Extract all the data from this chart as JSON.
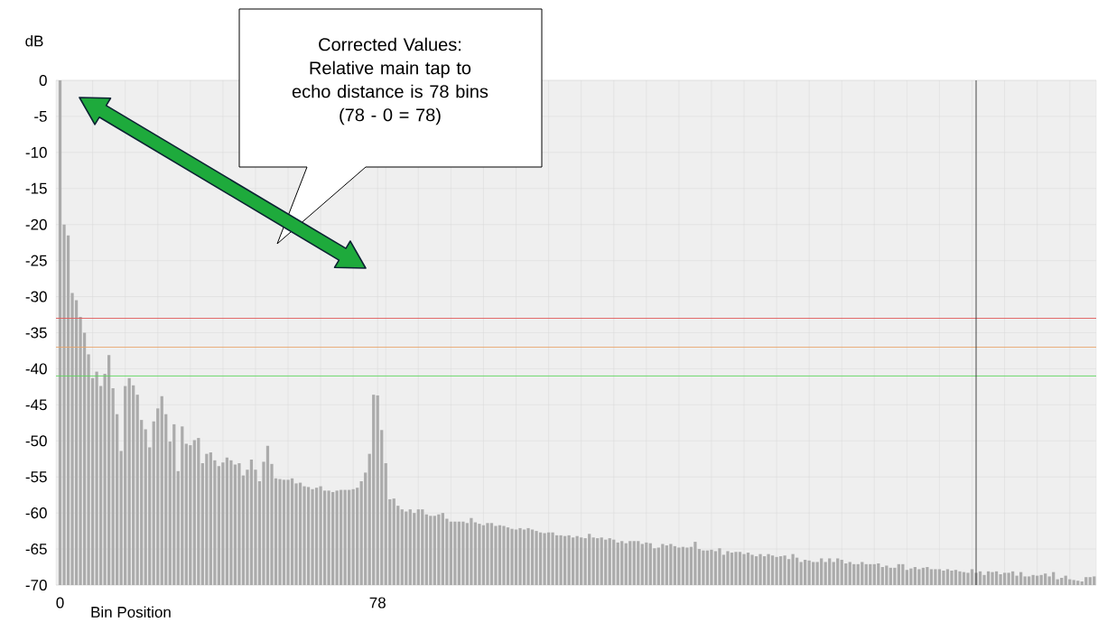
{
  "chart_data": {
    "type": "bar",
    "xlabel": "Bin Position",
    "ylabel": "dB",
    "color": "#ababab",
    "x": [
      0,
      1,
      2,
      3,
      4,
      5,
      6,
      7,
      8,
      9,
      10,
      11,
      12,
      13,
      14,
      15,
      16,
      17,
      18,
      19,
      20,
      21,
      22,
      23,
      24,
      25,
      26,
      27,
      28,
      29,
      30,
      31,
      32,
      33,
      34,
      35,
      36,
      37,
      38,
      39,
      40,
      41,
      42,
      43,
      44,
      45,
      46,
      47,
      48,
      49,
      50,
      51,
      52,
      53,
      54,
      55,
      56,
      57,
      58,
      59,
      60,
      61,
      62,
      63,
      64,
      65,
      66,
      67,
      68,
      69,
      70,
      71,
      72,
      73,
      74,
      75,
      76,
      77,
      78,
      79,
      80,
      81,
      82,
      83,
      84,
      85,
      86,
      87,
      88,
      89,
      90,
      91,
      92,
      93,
      94,
      95,
      96,
      97,
      98,
      99,
      100,
      101,
      102,
      103,
      104,
      105,
      106,
      107,
      108,
      109,
      110,
      111,
      112,
      113,
      114,
      115,
      116,
      117,
      118,
      119,
      120,
      121,
      122,
      123,
      124,
      125,
      126,
      127,
      128,
      129,
      130,
      131,
      132,
      133,
      134,
      135,
      136,
      137,
      138,
      139,
      140,
      141,
      142,
      143,
      144,
      145,
      146,
      147,
      148,
      149,
      150,
      151,
      152,
      153,
      154,
      155,
      156,
      157,
      158,
      159,
      160,
      161,
      162,
      163,
      164,
      165,
      166,
      167,
      168,
      169,
      170,
      171,
      172,
      173,
      174,
      175,
      176,
      177,
      178,
      179,
      180,
      181,
      182,
      183,
      184,
      185,
      186,
      187,
      188,
      189,
      190,
      191,
      192,
      193,
      194,
      195,
      196,
      197,
      198,
      199,
      200,
      201,
      202,
      203,
      204,
      205,
      206,
      207,
      208,
      209,
      210,
      211,
      212,
      213,
      214,
      215,
      216,
      217,
      218,
      219,
      220,
      221,
      222,
      223,
      224,
      225,
      226,
      227,
      228,
      229,
      230,
      231,
      232,
      233,
      234,
      235,
      236,
      237,
      238,
      239,
      240,
      241,
      242,
      243,
      244,
      245,
      246,
      247,
      248,
      249,
      250,
      251,
      252,
      253,
      254
    ],
    "values": [
      70,
      50.0,
      48.5,
      40.5,
      39.5,
      37.2,
      35.0,
      32.0,
      28.7,
      29.6,
      27.6,
      29.3,
      31.9,
      27.3,
      23.7,
      18.6,
      27.6,
      28.7,
      27.7,
      26.4,
      22.9,
      21.6,
      19.1,
      22.7,
      24.5,
      26.2,
      23.7,
      19.9,
      22.3,
      15.8,
      22.0,
      19.6,
      19.4,
      20.1,
      20.4,
      16.9,
      18.2,
      18.4,
      17.3,
      16.5,
      17.0,
      17.7,
      17.3,
      16.7,
      16.9,
      15.2,
      16.0,
      17.4,
      16.0,
      14.4,
      17.1,
      19.3,
      16.8,
      14.8,
      14.7,
      14.6,
      14.6,
      14.8,
      14.1,
      14.2,
      13.7,
      13.6,
      13.3,
      13.5,
      13.7,
      13.1,
      13.1,
      12.9,
      13.1,
      13.2,
      13.2,
      13.2,
      13.3,
      13.5,
      14.4,
      15.6,
      18.2,
      26.4,
      26.3,
      21.5,
      16.9,
      11.9,
      12.0,
      11.0,
      10.5,
      10.2,
      10.5,
      10.0,
      10.5,
      10.5,
      9.8,
      9.6,
      9.6,
      9.8,
      10.0,
      9.2,
      8.8,
      8.8,
      8.8,
      8.8,
      8.6,
      9.3,
      8.7,
      8.5,
      8.3,
      8.6,
      8.6,
      8.2,
      8.3,
      8.2,
      8.0,
      7.8,
      7.7,
      7.9,
      7.7,
      7.9,
      7.7,
      7.5,
      7.3,
      7.2,
      7.3,
      7.3,
      6.9,
      6.9,
      6.8,
      6.9,
      6.6,
      6.8,
      6.6,
      6.5,
      7.1,
      6.6,
      6.5,
      6.6,
      6.3,
      6.5,
      6.3,
      5.9,
      6.1,
      5.8,
      6.1,
      6.1,
      6.1,
      5.7,
      5.9,
      5.8,
      5.1,
      5.2,
      5.7,
      5.5,
      5.7,
      5.4,
      5.2,
      5.3,
      5.2,
      5.3,
      6.0,
      5.0,
      4.8,
      4.8,
      4.9,
      4.7,
      5.1,
      4.2,
      4.7,
      4.5,
      4.6,
      4.6,
      4.3,
      4.5,
      4.2,
      4.0,
      4.3,
      4.0,
      4.3,
      4.1,
      3.9,
      4.0,
      4.1,
      3.6,
      4.3,
      3.8,
      3.2,
      3.5,
      3.4,
      3.2,
      3.2,
      3.7,
      3.2,
      3.7,
      3.2,
      3.7,
      3.5,
      3.0,
      3.2,
      2.9,
      2.9,
      3.2,
      2.9,
      2.9,
      2.9,
      3.0,
      2.5,
      2.7,
      2.4,
      2.4,
      2.9,
      2.9,
      2.1,
      2.3,
      2.5,
      2.2,
      2.4,
      2.5,
      2.2,
      2.2,
      2.2,
      2.0,
      2.2,
      2.0,
      2.1,
      1.9,
      1.8,
      1.7,
      2.2,
      1.7,
      1.9,
      1.4,
      1.9,
      1.8,
      1.9,
      1.5,
      1.7,
      1.7,
      1.9,
      1.3,
      1.8,
      1.2,
      1.2,
      1.4,
      1.3,
      1.4,
      1.6,
      1.2,
      1.8,
      0.8,
      1.0,
      1.3,
      0.8,
      0.7,
      0.6,
      0.5,
      1.1,
      1.1,
      1.2
    ],
    "base": [
      -70,
      -70,
      -70,
      -70,
      -70,
      -70,
      -70,
      -70,
      -70,
      -70,
      -70,
      -70,
      -70,
      -70,
      -70,
      -70,
      -70,
      -70,
      -70,
      -70,
      -70,
      -70,
      -70,
      -70,
      -70,
      -70,
      -70,
      -70,
      -70,
      -70,
      -70,
      -70,
      -70,
      -70,
      -70,
      -70,
      -70,
      -70,
      -70,
      -70,
      -70,
      -70,
      -70,
      -70,
      -70,
      -70,
      -70,
      -70,
      -70,
      -70,
      -70,
      -70,
      -70,
      -70,
      -70,
      -70,
      -70,
      -70,
      -70,
      -70,
      -70,
      -70,
      -70,
      -70,
      -70,
      -70,
      -70,
      -70,
      -70,
      -70,
      -70,
      -70,
      -70,
      -70,
      -70,
      -70,
      -70,
      -70,
      -70,
      -70,
      -70,
      -70,
      -70,
      -70,
      -70,
      -70,
      -70,
      -70,
      -70,
      -70,
      -70,
      -70,
      -70,
      -70,
      -70,
      -70,
      -70,
      -70,
      -70,
      -70,
      -70,
      -70,
      -70,
      -70,
      -70,
      -70,
      -70,
      -70,
      -70,
      -70,
      -70,
      -70,
      -70,
      -70,
      -70,
      -70,
      -70,
      -70,
      -70,
      -70,
      -70,
      -70,
      -70,
      -70,
      -70,
      -70,
      -70,
      -70,
      -70,
      -70,
      -70,
      -70,
      -70,
      -70,
      -70,
      -70,
      -70,
      -70,
      -70,
      -70,
      -70,
      -70,
      -70,
      -70,
      -70,
      -70,
      -70,
      -70,
      -70,
      -70,
      -70,
      -70,
      -70,
      -70,
      -70,
      -70,
      -70,
      -70,
      -70,
      -70,
      -70,
      -70,
      -70,
      -70,
      -70,
      -70,
      -70,
      -70,
      -70,
      -70,
      -70,
      -70,
      -70,
      -70,
      -70,
      -70,
      -70,
      -70,
      -70,
      -70,
      -70,
      -70,
      -70,
      -70,
      -70,
      -70,
      -70,
      -70,
      -70,
      -70,
      -70,
      -70,
      -70,
      -70,
      -70,
      -70,
      -70,
      -70,
      -70,
      -70,
      -70,
      -70,
      -70,
      -70,
      -70,
      -70,
      -70,
      -70,
      -70,
      -70,
      -70,
      -70,
      -70,
      -70,
      -70,
      -70,
      -70,
      -70,
      -70,
      -70,
      -70,
      -70,
      -70,
      -70,
      -70,
      -70,
      -70,
      -70,
      -70,
      -70,
      -70,
      -70,
      -70,
      -70,
      -70,
      -70,
      -70,
      -70,
      -70,
      -70,
      -70,
      -70,
      -70,
      -70,
      -70,
      -70,
      -70,
      -70,
      -70,
      -70,
      -70,
      -70,
      -70,
      -70,
      -70
    ],
    "xlim": [
      -1,
      254.5
    ],
    "ylim": [
      -70,
      0
    ],
    "xticks": [
      0,
      {
        "value": 8,
        "label": null
      },
      {
        "value": 16,
        "label": null
      },
      {
        "value": 24,
        "label": null
      },
      {
        "value": 32,
        "label": null
      },
      {
        "value": 40,
        "label": null
      },
      {
        "value": 48,
        "label": null
      },
      {
        "value": 56,
        "label": null
      },
      {
        "value": 64,
        "label": null
      },
      {
        "value": 72,
        "label": null
      },
      78,
      {
        "value": 80,
        "label": null
      },
      {
        "value": 88,
        "label": null
      },
      {
        "value": 96,
        "label": null
      },
      {
        "value": 104,
        "label": null
      },
      {
        "value": 112,
        "label": null
      },
      {
        "value": 120,
        "label": null
      },
      {
        "value": 128,
        "label": null
      },
      {
        "value": 136,
        "label": null
      },
      {
        "value": 144,
        "label": null
      },
      {
        "value": 152,
        "label": null
      },
      {
        "value": 160,
        "label": null
      },
      {
        "value": 168,
        "label": null
      },
      {
        "value": 176,
        "label": null
      },
      {
        "value": 184,
        "label": null
      },
      {
        "value": 192,
        "label": null
      },
      {
        "value": 200,
        "label": null
      },
      {
        "value": 208,
        "label": null
      },
      {
        "value": 216,
        "label": null
      },
      {
        "value": 224,
        "label": null
      },
      {
        "value": 232,
        "label": null
      },
      {
        "value": 240,
        "label": null
      },
      {
        "value": 248,
        "label": null
      }
    ],
    "yticks": [
      0,
      -5,
      -10,
      -15,
      -20,
      -25,
      -30,
      -35,
      -40,
      -45,
      -50,
      -55,
      -60,
      -65,
      -70
    ],
    "grid": true,
    "ref_lines": [
      {
        "axis": "y",
        "value": -33,
        "color": "#e05a5a"
      },
      {
        "axis": "y",
        "value": -37,
        "color": "#e8a46a"
      },
      {
        "axis": "y",
        "value": -41,
        "color": "#5cd65c"
      },
      {
        "axis": "x",
        "value": 225,
        "color": "#333333"
      }
    ],
    "annotations": [
      "Corrected Values:",
      "Relative main tap to echo distance is 78 bins",
      "(78 - 0 = 78)"
    ]
  }
}
